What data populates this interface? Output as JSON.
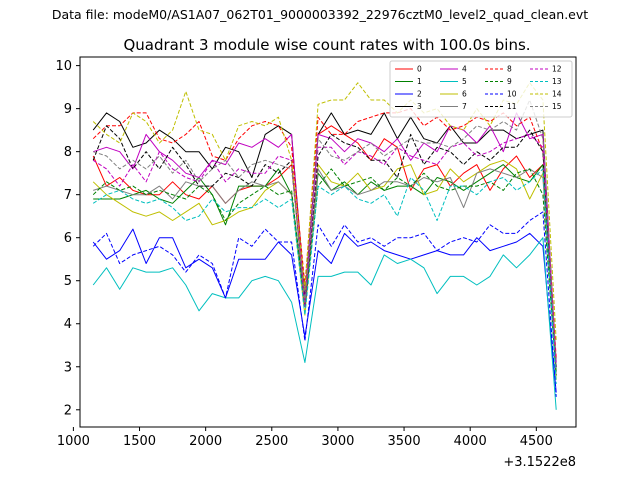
{
  "header": "Data file: modeM0/AS1A07_062T01_9000003392_22976cztM0_level2_quad_clean.evt",
  "chart_data": {
    "type": "line",
    "title": "Quadrant 3 module wise count rates with 100.0s bins.",
    "xlabel": "",
    "ylabel": "",
    "x_offset_label": "+3.1522e8",
    "xlim": [
      1050,
      4800
    ],
    "ylim": [
      1.6,
      10.2
    ],
    "xticks": [
      1000,
      1500,
      2000,
      2500,
      3000,
      3500,
      4000,
      4500
    ],
    "xtick_labels": [
      "1000",
      "1500",
      "2000",
      "2500",
      "3000",
      "3500",
      "4000",
      "4500"
    ],
    "yticks": [
      2,
      3,
      4,
      5,
      6,
      7,
      8,
      9,
      10
    ],
    "ytick_labels": [
      "2",
      "3",
      "4",
      "5",
      "6",
      "7",
      "8",
      "9",
      "10"
    ],
    "grid": false,
    "legend_position": "top-right",
    "x": [
      1150,
      1250,
      1350,
      1450,
      1550,
      1650,
      1750,
      1850,
      1950,
      2050,
      2150,
      2250,
      2350,
      2450,
      2550,
      2650,
      2750,
      2850,
      2950,
      3050,
      3150,
      3250,
      3350,
      3450,
      3550,
      3650,
      3750,
      3850,
      3950,
      4050,
      4150,
      4250,
      4350,
      4450,
      4550,
      4650
    ],
    "series": [
      {
        "name": "0",
        "color": "#ff0000",
        "dash": "solid",
        "values": [
          7.9,
          7.2,
          7.4,
          7.1,
          7.0,
          7.0,
          7.3,
          7.0,
          6.9,
          7.2,
          6.8,
          7.1,
          7.2,
          7.2,
          7.4,
          7.7,
          4.5,
          8.4,
          8.6,
          8.4,
          8.2,
          7.8,
          8.3,
          8.1,
          7.1,
          7.6,
          7.7,
          7.2,
          7.5,
          7.7,
          7.1,
          7.6,
          7.9,
          7.4,
          7.7,
          3.0
        ]
      },
      {
        "name": "1",
        "color": "#008000",
        "dash": "solid",
        "values": [
          6.9,
          6.9,
          6.9,
          7.0,
          7.1,
          6.9,
          6.8,
          7.1,
          7.4,
          7.0,
          6.3,
          7.2,
          7.2,
          7.2,
          7.6,
          7.0,
          4.5,
          7.5,
          7.1,
          7.3,
          7.0,
          7.3,
          7.1,
          7.2,
          7.2,
          7.0,
          7.4,
          7.3,
          7.1,
          7.3,
          7.5,
          7.7,
          7.4,
          7.3,
          7.7,
          2.9
        ]
      },
      {
        "name": "2",
        "color": "#0000ff",
        "dash": "solid",
        "values": [
          5.9,
          5.5,
          5.7,
          6.2,
          5.4,
          6.0,
          6.0,
          5.3,
          5.5,
          5.3,
          4.6,
          5.5,
          5.5,
          5.5,
          5.9,
          5.6,
          3.7,
          5.7,
          5.4,
          6.1,
          5.8,
          5.9,
          5.7,
          5.6,
          5.5,
          5.6,
          5.7,
          5.6,
          5.6,
          6.0,
          5.7,
          5.8,
          5.9,
          6.1,
          5.8,
          2.4
        ]
      },
      {
        "name": "3",
        "color": "#000000",
        "dash": "solid",
        "values": [
          8.5,
          8.9,
          8.7,
          8.1,
          8.2,
          8.5,
          8.3,
          8.0,
          8.0,
          7.6,
          8.1,
          8.0,
          7.4,
          8.4,
          8.6,
          8.4,
          4.6,
          8.4,
          8.9,
          8.4,
          8.5,
          8.4,
          8.9,
          8.3,
          8.8,
          8.3,
          8.2,
          8.6,
          8.2,
          8.2,
          8.5,
          8.5,
          8.3,
          8.4,
          8.5,
          3.0
        ]
      },
      {
        "name": "4",
        "color": "#c000c0",
        "dash": "solid",
        "values": [
          8.0,
          8.1,
          8.0,
          7.6,
          8.4,
          8.0,
          7.8,
          7.5,
          7.4,
          7.8,
          7.7,
          8.2,
          8.1,
          8.3,
          8.1,
          8.4,
          4.5,
          8.4,
          8.3,
          8.0,
          8.3,
          8.2,
          8.0,
          8.3,
          7.8,
          8.2,
          8.0,
          8.6,
          8.5,
          8.2,
          8.6,
          8.0,
          8.9,
          8.3,
          8.4,
          3.1
        ]
      },
      {
        "name": "5",
        "color": "#00bfbf",
        "dash": "solid",
        "values": [
          4.9,
          5.3,
          4.8,
          5.3,
          5.2,
          5.2,
          5.3,
          4.9,
          4.3,
          4.7,
          4.6,
          4.6,
          5.0,
          5.1,
          5.0,
          4.5,
          3.1,
          5.1,
          5.1,
          5.2,
          5.2,
          4.9,
          5.6,
          5.4,
          5.5,
          5.3,
          4.7,
          5.1,
          5.1,
          4.9,
          5.1,
          5.6,
          5.3,
          5.6,
          6.0,
          2.0
        ]
      },
      {
        "name": "6",
        "color": "#bfbf00",
        "dash": "solid",
        "values": [
          7.3,
          7.0,
          6.8,
          6.6,
          6.5,
          6.6,
          6.4,
          6.6,
          6.8,
          6.3,
          6.4,
          6.6,
          6.7,
          7.1,
          7.3,
          7.0,
          4.2,
          7.7,
          7.3,
          7.2,
          7.5,
          7.1,
          7.2,
          7.6,
          7.7,
          7.0,
          7.1,
          7.6,
          7.3,
          7.5,
          7.7,
          7.8,
          7.6,
          6.9,
          7.5,
          2.7
        ]
      },
      {
        "name": "7",
        "color": "#808080",
        "dash": "solid",
        "values": [
          7.1,
          7.2,
          7.1,
          7.0,
          7.0,
          7.2,
          6.9,
          7.3,
          7.2,
          7.2,
          6.8,
          7.1,
          7.3,
          7.2,
          7.3,
          7.0,
          4.4,
          7.6,
          7.1,
          7.2,
          7.0,
          7.1,
          7.3,
          7.3,
          7.2,
          7.4,
          7.3,
          7.4,
          6.7,
          7.5,
          7.6,
          7.5,
          7.4,
          7.6,
          7.4,
          2.8
        ]
      },
      {
        "name": "8",
        "color": "#ff0000",
        "dash": "dashed",
        "values": [
          8.3,
          8.6,
          8.6,
          8.9,
          8.9,
          8.3,
          8.2,
          8.4,
          8.7,
          7.9,
          7.8,
          8.3,
          8.6,
          8.7,
          8.6,
          8.1,
          4.9,
          8.8,
          8.4,
          8.4,
          8.7,
          8.8,
          8.9,
          8.9,
          9.0,
          8.6,
          8.8,
          8.5,
          8.6,
          8.8,
          8.7,
          8.9,
          8.6,
          8.8,
          8.0,
          3.2
        ]
      },
      {
        "name": "9",
        "color": "#008000",
        "dash": "dashed",
        "values": [
          7.0,
          7.3,
          7.1,
          7.2,
          7.0,
          7.1,
          7.0,
          6.9,
          7.2,
          7.0,
          6.4,
          6.8,
          7.0,
          7.2,
          7.0,
          7.1,
          4.4,
          7.2,
          7.6,
          7.2,
          7.3,
          7.4,
          7.1,
          7.4,
          7.2,
          7.5,
          7.2,
          7.1,
          7.2,
          7.2,
          7.3,
          7.1,
          7.5,
          7.6,
          7.0,
          2.8
        ]
      },
      {
        "name": "10",
        "color": "#0000ff",
        "dash": "dashed",
        "values": [
          5.8,
          6.1,
          5.4,
          5.6,
          5.7,
          5.8,
          5.6,
          5.2,
          5.6,
          5.4,
          4.6,
          6.0,
          5.8,
          6.2,
          5.9,
          5.9,
          3.6,
          6.3,
          5.8,
          6.3,
          5.9,
          6.0,
          5.8,
          6.0,
          6.0,
          6.1,
          5.7,
          5.9,
          6.0,
          5.9,
          6.3,
          6.1,
          6.1,
          6.4,
          6.6,
          2.3
        ]
      },
      {
        "name": "11",
        "color": "#000000",
        "dash": "dashed",
        "values": [
          7.8,
          8.6,
          8.3,
          7.6,
          8.0,
          7.6,
          8.1,
          7.7,
          7.2,
          7.2,
          7.5,
          7.4,
          7.2,
          7.7,
          7.5,
          7.8,
          4.4,
          7.9,
          8.4,
          8.2,
          8.1,
          7.8,
          7.8,
          7.4,
          8.4,
          7.7,
          8.1,
          8.0,
          7.7,
          8.0,
          7.8,
          8.1,
          8.1,
          8.5,
          8.0,
          3.0
        ]
      },
      {
        "name": "12",
        "color": "#c000c0",
        "dash": "dashed",
        "values": [
          7.8,
          7.6,
          7.2,
          7.7,
          7.3,
          8.0,
          7.6,
          7.4,
          7.3,
          7.8,
          7.3,
          7.6,
          7.5,
          7.5,
          7.9,
          7.8,
          4.4,
          8.1,
          8.1,
          7.7,
          8.0,
          7.9,
          7.7,
          8.1,
          7.9,
          7.8,
          7.7,
          8.1,
          8.2,
          7.9,
          8.0,
          8.2,
          8.3,
          8.4,
          8.1,
          3.0
        ]
      },
      {
        "name": "13",
        "color": "#00bfbf",
        "dash": "dashed",
        "values": [
          6.8,
          7.0,
          7.1,
          6.9,
          6.8,
          6.9,
          6.7,
          6.4,
          6.5,
          6.9,
          6.6,
          6.7,
          6.7,
          6.9,
          6.7,
          6.9,
          4.2,
          7.2,
          7.0,
          7.2,
          6.9,
          6.8,
          7.0,
          6.5,
          7.4,
          7.1,
          6.4,
          7.2,
          7.2,
          7.0,
          7.3,
          7.4,
          7.1,
          7.3,
          7.6,
          2.6
        ]
      },
      {
        "name": "14",
        "color": "#bfbf00",
        "dash": "dashed",
        "values": [
          8.7,
          8.4,
          8.2,
          8.9,
          8.7,
          8.2,
          8.5,
          9.4,
          8.5,
          8.4,
          7.8,
          8.6,
          8.7,
          8.6,
          8.8,
          7.8,
          4.8,
          9.1,
          9.2,
          9.2,
          9.6,
          9.2,
          9.2,
          8.9,
          9.2,
          8.9,
          9.0,
          8.6,
          8.5,
          9.0,
          8.6,
          9.2,
          9.1,
          9.6,
          9.2,
          3.6
        ]
      },
      {
        "name": "15",
        "color": "#808080",
        "dash": "dashed",
        "values": [
          8.0,
          7.9,
          7.6,
          7.8,
          7.6,
          7.9,
          7.5,
          7.8,
          7.3,
          7.6,
          7.8,
          7.4,
          7.7,
          7.8,
          7.7,
          7.6,
          4.5,
          8.3,
          7.9,
          7.8,
          8.0,
          8.2,
          7.9,
          8.1,
          8.3,
          8.2,
          8.2,
          8.1,
          8.3,
          8.6,
          8.5,
          8.7,
          8.5,
          9.2,
          8.3,
          3.0
        ]
      }
    ]
  }
}
